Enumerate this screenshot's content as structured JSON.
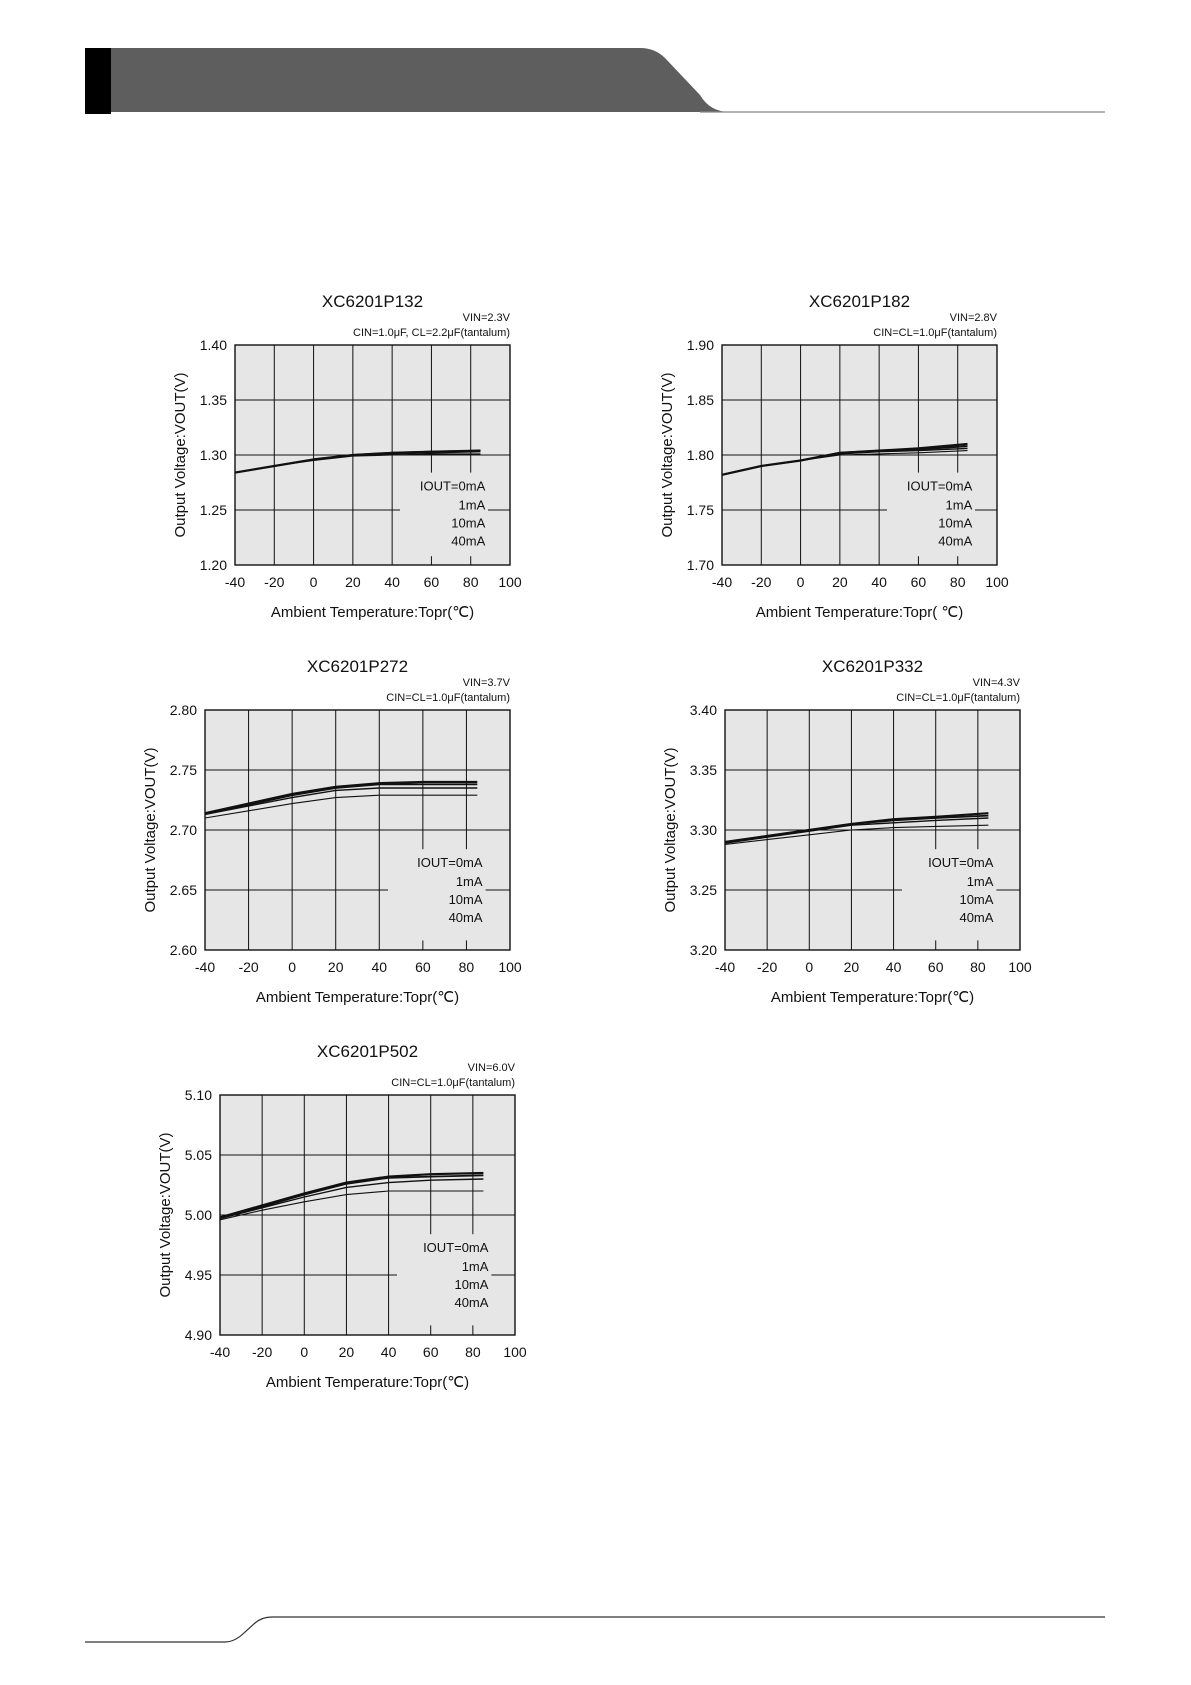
{
  "charts": [
    {
      "title": "XC6201P132",
      "condition_line1": "VIN=2.3V",
      "condition_line2": "CIN=1.0μF, CL=2.2μF(tantalum)",
      "legend_title": "IOUT=0mA",
      "legend_items": [
        "1mA",
        "10mA",
        "40mA"
      ]
    },
    {
      "title": "XC6201P182",
      "condition_line1": "VIN=2.8V",
      "condition_line2": "CIN=CL=1.0μF(tantalum)",
      "legend_title": "IOUT=0mA",
      "legend_items": [
        "1mA",
        "10mA",
        "40mA"
      ]
    },
    {
      "title": "XC6201P272",
      "condition_line1": "VIN=3.7V",
      "condition_line2": "CIN=CL=1.0μF(tantalum)",
      "legend_title": "IOUT=0mA",
      "legend_items": [
        "1mA",
        "10mA",
        "40mA"
      ]
    },
    {
      "title": "XC6201P332",
      "condition_line1": "VIN=4.3V",
      "condition_line2": "CIN=CL=1.0μF(tantalum)",
      "legend_title": "IOUT=0mA",
      "legend_items": [
        "1mA",
        "10mA",
        "40mA"
      ]
    },
    {
      "title": "XC6201P502",
      "condition_line1": "VIN=6.0V",
      "condition_line2": "CIN=CL=1.0μF(tantalum)",
      "legend_title": "IOUT=0mA",
      "legend_items": [
        "1mA",
        "10mA",
        "40mA"
      ]
    }
  ],
  "chart_data": [
    {
      "type": "line",
      "title": "XC6201P132",
      "xlabel": "Ambient Temperature:Topr(℃)",
      "ylabel": "Output Voltage:VOUT(V)",
      "xlim": [
        -40,
        100
      ],
      "ylim": [
        1.2,
        1.4
      ],
      "xticks": [
        "-40",
        "-20",
        "0",
        "20",
        "40",
        "60",
        "80",
        "100"
      ],
      "yticks": [
        "1.20",
        "1.25",
        "1.30",
        "1.35",
        "1.40"
      ],
      "grid": true,
      "x": [
        -40,
        -20,
        0,
        20,
        40,
        60,
        85
      ],
      "series": [
        {
          "name": "IOUT=0mA",
          "values": [
            1.284,
            1.29,
            1.296,
            1.3,
            1.302,
            1.303,
            1.304
          ]
        },
        {
          "name": "1mA",
          "values": [
            1.284,
            1.29,
            1.296,
            1.3,
            1.302,
            1.303,
            1.304
          ]
        },
        {
          "name": "10mA",
          "values": [
            1.284,
            1.29,
            1.296,
            1.3,
            1.301,
            1.302,
            1.303
          ]
        },
        {
          "name": "40mA",
          "values": [
            1.284,
            1.29,
            1.295,
            1.299,
            1.3,
            1.301,
            1.301
          ]
        }
      ]
    },
    {
      "type": "line",
      "title": "XC6201P182",
      "xlabel": "Ambient Temperature:Topr( ℃)",
      "ylabel": "Output Voltage:VOUT(V)",
      "xlim": [
        -40,
        100
      ],
      "ylim": [
        1.7,
        1.9
      ],
      "xticks": [
        "-40",
        "-20",
        "0",
        "20",
        "40",
        "60",
        "80",
        "100"
      ],
      "yticks": [
        "1.70",
        "1.75",
        "1.80",
        "1.85",
        "1.90"
      ],
      "grid": true,
      "x": [
        -40,
        -20,
        0,
        20,
        40,
        60,
        85
      ],
      "series": [
        {
          "name": "IOUT=0mA",
          "values": [
            1.782,
            1.79,
            1.795,
            1.802,
            1.804,
            1.806,
            1.81
          ]
        },
        {
          "name": "1mA",
          "values": [
            1.782,
            1.79,
            1.795,
            1.802,
            1.804,
            1.805,
            1.808
          ]
        },
        {
          "name": "10mA",
          "values": [
            1.782,
            1.79,
            1.795,
            1.801,
            1.803,
            1.804,
            1.806
          ]
        },
        {
          "name": "40mA",
          "values": [
            1.782,
            1.79,
            1.795,
            1.8,
            1.801,
            1.802,
            1.804
          ]
        }
      ]
    },
    {
      "type": "line",
      "title": "XC6201P272",
      "xlabel": "Ambient Temperature:Topr(℃)",
      "ylabel": "Output Voltage:VOUT(V)",
      "xlim": [
        -40,
        100
      ],
      "ylim": [
        2.6,
        2.8
      ],
      "xticks": [
        "-40",
        "-20",
        "0",
        "20",
        "40",
        "60",
        "80",
        "100"
      ],
      "yticks": [
        "2.60",
        "2.65",
        "2.70",
        "2.75",
        "2.80"
      ],
      "grid": true,
      "x": [
        -40,
        -20,
        0,
        20,
        40,
        60,
        85
      ],
      "series": [
        {
          "name": "IOUT=0mA",
          "values": [
            2.714,
            2.722,
            2.73,
            2.736,
            2.739,
            2.74,
            2.74
          ]
        },
        {
          "name": "1mA",
          "values": [
            2.714,
            2.721,
            2.729,
            2.735,
            2.738,
            2.738,
            2.738
          ]
        },
        {
          "name": "10mA",
          "values": [
            2.713,
            2.72,
            2.727,
            2.733,
            2.735,
            2.735,
            2.735
          ]
        },
        {
          "name": "40mA",
          "values": [
            2.71,
            2.716,
            2.722,
            2.727,
            2.729,
            2.729,
            2.729
          ]
        }
      ]
    },
    {
      "type": "line",
      "title": "XC6201P332",
      "xlabel": "Ambient Temperature:Topr(℃)",
      "ylabel": "Output Voltage:VOUT(V)",
      "xlim": [
        -40,
        100
      ],
      "ylim": [
        3.2,
        3.4
      ],
      "xticks": [
        "-40",
        "-20",
        "0",
        "20",
        "40",
        "60",
        "80",
        "100"
      ],
      "yticks": [
        "3.20",
        "3.25",
        "3.30",
        "3.35",
        "3.40"
      ],
      "grid": true,
      "x": [
        -40,
        -20,
        0,
        20,
        40,
        60,
        85
      ],
      "series": [
        {
          "name": "IOUT=0mA",
          "values": [
            3.29,
            3.295,
            3.3,
            3.305,
            3.309,
            3.311,
            3.314
          ]
        },
        {
          "name": "1mA",
          "values": [
            3.29,
            3.295,
            3.3,
            3.305,
            3.308,
            3.31,
            3.312
          ]
        },
        {
          "name": "10mA",
          "values": [
            3.289,
            3.294,
            3.299,
            3.304,
            3.306,
            3.308,
            3.31
          ]
        },
        {
          "name": "40mA",
          "values": [
            3.288,
            3.292,
            3.296,
            3.3,
            3.302,
            3.303,
            3.304
          ]
        }
      ]
    },
    {
      "type": "line",
      "title": "XC6201P502",
      "xlabel": "Ambient Temperature:Topr(℃)",
      "ylabel": "Output Voltage:VOUT(V)",
      "xlim": [
        -40,
        100
      ],
      "ylim": [
        4.9,
        5.1
      ],
      "xticks": [
        "-40",
        "-20",
        "0",
        "20",
        "40",
        "60",
        "80",
        "100"
      ],
      "yticks": [
        "4.90",
        "4.95",
        "5.00",
        "5.05",
        "5.10"
      ],
      "grid": true,
      "x": [
        -40,
        -20,
        0,
        20,
        40,
        60,
        85
      ],
      "series": [
        {
          "name": "IOUT=0mA",
          "values": [
            4.998,
            5.008,
            5.018,
            5.027,
            5.032,
            5.034,
            5.035
          ]
        },
        {
          "name": "1mA",
          "values": [
            4.998,
            5.007,
            5.017,
            5.026,
            5.031,
            5.032,
            5.033
          ]
        },
        {
          "name": "10mA",
          "values": [
            4.997,
            5.006,
            5.015,
            5.023,
            5.027,
            5.029,
            5.03
          ]
        },
        {
          "name": "40mA",
          "values": [
            4.996,
            5.004,
            5.011,
            5.017,
            5.02,
            5.02,
            5.02
          ]
        }
      ]
    }
  ]
}
